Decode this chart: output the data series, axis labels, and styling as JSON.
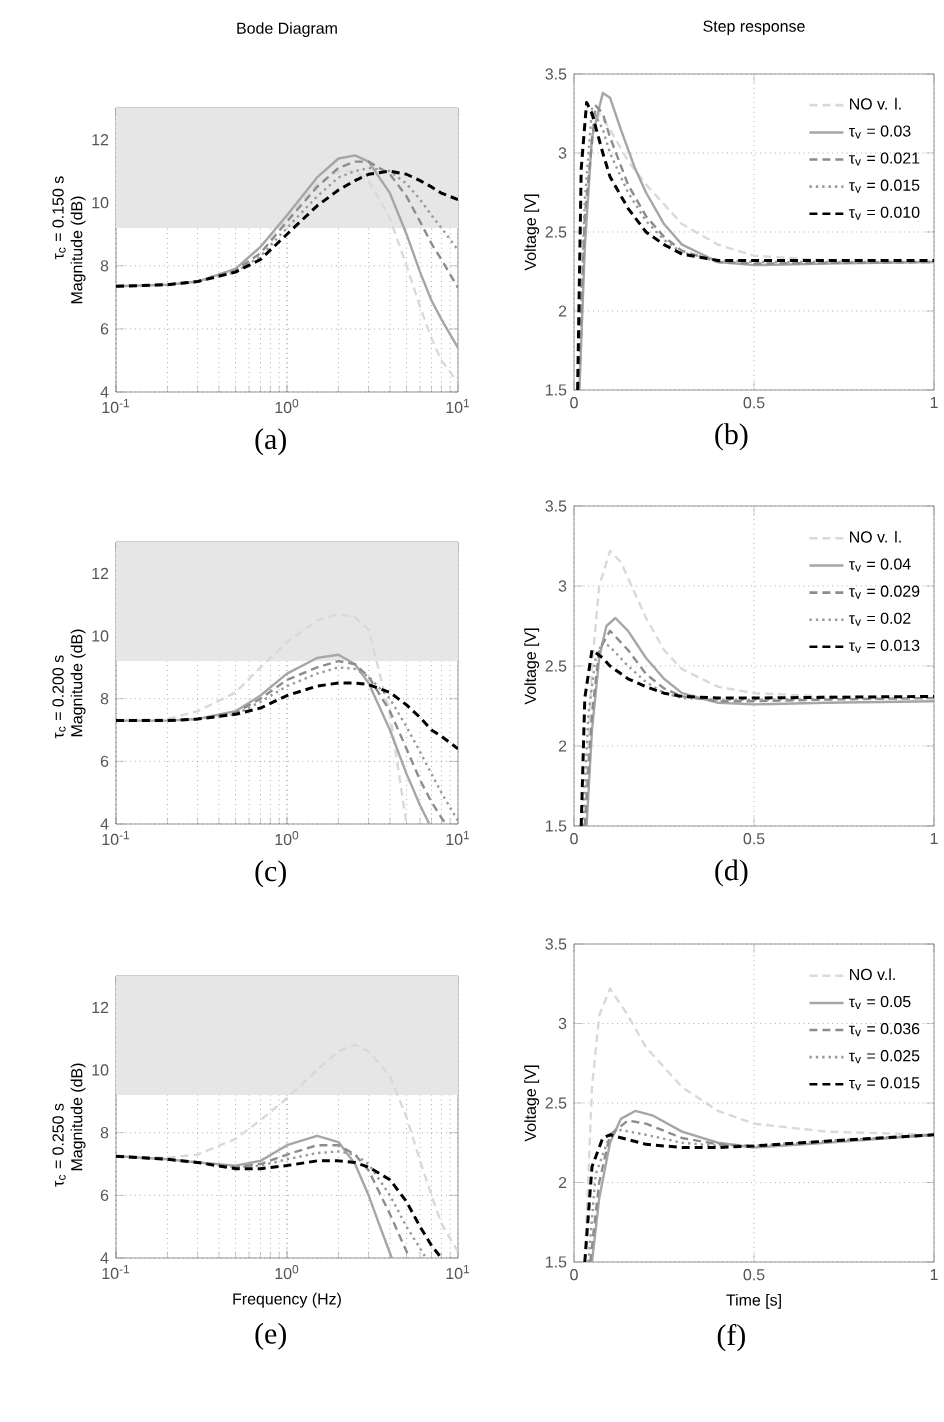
{
  "chart_data": [
    {
      "type": "line",
      "title": "Bode Diagram",
      "ylabel": "Magnitude (dB)",
      "annotations": [
        "τ$_{c}$ = 0.150 s",
        "(a)"
      ],
      "log": "x",
      "grid": true,
      "xlim": [
        0.1,
        10
      ],
      "ylim": [
        4,
        13
      ],
      "xticks": [
        {
          "value": 0.1,
          "label": "10$^{-1}$"
        },
        {
          "value": 1,
          "label": "10$^{0}$"
        },
        {
          "value": 10,
          "label": "10$^{1}$"
        }
      ],
      "yticks": [
        4,
        6,
        8,
        10,
        12
      ],
      "bands": [
        {
          "axis": "y",
          "from": 9.2,
          "to": 13,
          "color": "#e6e6e6"
        }
      ],
      "series": [
        {
          "color": "#d9d9d9",
          "line_style": "dashed",
          "x": [
            0.1,
            0.2,
            0.3,
            0.5,
            0.7,
            1,
            1.5,
            2,
            2.5,
            3,
            4,
            5,
            6,
            7,
            8,
            10
          ],
          "values": [
            7.35,
            7.4,
            7.5,
            7.9,
            8.6,
            9.5,
            10.6,
            11.0,
            11.0,
            10.7,
            9.5,
            8.0,
            6.7,
            5.7,
            5.0,
            4.3
          ]
        },
        {
          "color": "#a6a6a6",
          "line_style": "solid",
          "x": [
            0.1,
            0.2,
            0.3,
            0.5,
            0.7,
            1,
            1.5,
            2,
            2.5,
            3,
            4,
            5,
            6,
            7,
            8,
            10
          ],
          "values": [
            7.35,
            7.4,
            7.5,
            7.9,
            8.6,
            9.6,
            10.8,
            11.4,
            11.5,
            11.3,
            10.3,
            9.0,
            7.8,
            6.9,
            6.3,
            5.4
          ]
        },
        {
          "color": "#8c8c8c",
          "line_style": "dashed",
          "x": [
            0.1,
            0.2,
            0.3,
            0.5,
            0.7,
            1,
            1.5,
            2,
            2.5,
            3,
            4,
            5,
            6,
            7,
            8,
            10
          ],
          "values": [
            7.35,
            7.4,
            7.5,
            7.85,
            8.4,
            9.4,
            10.5,
            11.1,
            11.3,
            11.3,
            10.9,
            10.2,
            9.4,
            8.7,
            8.2,
            7.3
          ]
        },
        {
          "color": "#999999",
          "line_style": "dotted",
          "x": [
            0.1,
            0.2,
            0.3,
            0.5,
            0.7,
            1,
            1.5,
            2,
            2.5,
            3,
            4,
            5,
            6,
            7,
            8,
            10
          ],
          "values": [
            7.35,
            7.4,
            7.5,
            7.8,
            8.3,
            9.2,
            10.2,
            10.8,
            11.0,
            11.1,
            11.0,
            10.6,
            10.1,
            9.6,
            9.2,
            8.5
          ]
        },
        {
          "color": "#000000",
          "line_style": "dashed",
          "x": [
            0.1,
            0.2,
            0.3,
            0.5,
            0.7,
            1,
            1.5,
            2,
            2.5,
            3,
            4,
            5,
            6,
            7,
            8,
            10
          ],
          "values": [
            7.35,
            7.4,
            7.5,
            7.8,
            8.2,
            9.0,
            9.9,
            10.4,
            10.7,
            10.9,
            11.0,
            10.9,
            10.7,
            10.5,
            10.3,
            10.1
          ]
        }
      ]
    },
    {
      "type": "line",
      "title": "Step response",
      "ylabel": "Voltage [V]",
      "annotations": [
        "(b)"
      ],
      "grid": true,
      "legend": "right",
      "xlim": [
        0,
        1
      ],
      "ylim": [
        1.5,
        3.5
      ],
      "xticks": [
        0,
        0.5,
        1
      ],
      "yticks": [
        1.5,
        2,
        2.5,
        3,
        3.5
      ],
      "series": [
        {
          "name": "NO v. l.",
          "color": "#d9d9d9",
          "line_style": "dashed",
          "x": [
            0.015,
            0.03,
            0.05,
            0.07,
            0.1,
            0.15,
            0.2,
            0.3,
            0.4,
            0.5,
            0.7,
            1
          ],
          "values": [
            1.5,
            2.5,
            3.1,
            3.25,
            3.15,
            2.95,
            2.8,
            2.55,
            2.42,
            2.35,
            2.32,
            2.31
          ]
        },
        {
          "name": "τ$_{v}$ = 0.03",
          "color": "#a6a6a6",
          "line_style": "solid",
          "x": [
            0.015,
            0.03,
            0.05,
            0.08,
            0.1,
            0.13,
            0.17,
            0.2,
            0.25,
            0.3,
            0.4,
            0.5,
            0.7,
            1
          ],
          "values": [
            1.5,
            2.4,
            3.1,
            3.38,
            3.35,
            3.15,
            2.9,
            2.75,
            2.55,
            2.42,
            2.31,
            2.29,
            2.3,
            2.31
          ]
        },
        {
          "name": "τ$_{v}$ = 0.021",
          "color": "#8c8c8c",
          "line_style": "dashed",
          "x": [
            0.012,
            0.03,
            0.06,
            0.08,
            0.1,
            0.15,
            0.2,
            0.25,
            0.3,
            0.4,
            0.5,
            1
          ],
          "values": [
            1.5,
            2.6,
            3.3,
            3.25,
            3.1,
            2.8,
            2.6,
            2.47,
            2.38,
            2.31,
            2.3,
            2.31
          ]
        },
        {
          "name": "τ$_{v}$ = 0.015",
          "color": "#999999",
          "line_style": "dotted",
          "x": [
            0.012,
            0.03,
            0.05,
            0.08,
            0.1,
            0.15,
            0.2,
            0.25,
            0.3,
            0.4,
            0.5,
            1
          ],
          "values": [
            1.5,
            2.7,
            3.28,
            3.15,
            3.0,
            2.75,
            2.57,
            2.45,
            2.37,
            2.32,
            2.31,
            2.31
          ]
        },
        {
          "name": "τ$_{v}$ = 0.010",
          "color": "#000000",
          "line_style": "dashed",
          "x": [
            0.01,
            0.02,
            0.035,
            0.05,
            0.08,
            0.1,
            0.15,
            0.2,
            0.25,
            0.3,
            0.4,
            0.5,
            1
          ],
          "values": [
            1.5,
            2.9,
            3.32,
            3.25,
            3.0,
            2.85,
            2.65,
            2.5,
            2.42,
            2.36,
            2.32,
            2.32,
            2.32
          ]
        }
      ]
    },
    {
      "type": "line",
      "ylabel": "Magnitude (dB)",
      "annotations": [
        "τ$_{c}$ = 0.200 s",
        "(c)"
      ],
      "log": "x",
      "grid": true,
      "xlim": [
        0.1,
        10
      ],
      "ylim": [
        4,
        13
      ],
      "xticks": [
        {
          "value": 0.1,
          "label": "10$^{-1}$"
        },
        {
          "value": 1,
          "label": "10$^{0}$"
        },
        {
          "value": 10,
          "label": "10$^{1}$"
        }
      ],
      "yticks": [
        4,
        6,
        8,
        10,
        12
      ],
      "bands": [
        {
          "axis": "y",
          "from": 9.2,
          "to": 13,
          "color": "#e6e6e6"
        }
      ],
      "series": [
        {
          "color": "#d9d9d9",
          "line_style": "dashed",
          "x": [
            0.1,
            0.2,
            0.3,
            0.5,
            0.7,
            1,
            1.5,
            2,
            2.5,
            3,
            4,
            5
          ],
          "values": [
            7.3,
            7.35,
            7.6,
            8.2,
            9.0,
            9.8,
            10.5,
            10.7,
            10.6,
            10.2,
            7.5,
            4.0
          ]
        },
        {
          "color": "#a6a6a6",
          "line_style": "solid",
          "x": [
            0.1,
            0.2,
            0.3,
            0.5,
            0.7,
            1,
            1.5,
            2,
            2.5,
            3,
            4,
            5,
            6,
            6.8
          ],
          "values": [
            7.3,
            7.3,
            7.35,
            7.6,
            8.1,
            8.8,
            9.3,
            9.4,
            9.1,
            8.5,
            7.0,
            5.6,
            4.6,
            4.0
          ]
        },
        {
          "color": "#8c8c8c",
          "line_style": "dashed",
          "x": [
            0.1,
            0.2,
            0.3,
            0.5,
            0.7,
            1,
            1.5,
            2,
            2.5,
            3,
            4,
            5,
            6,
            7,
            8,
            8.5
          ],
          "values": [
            7.3,
            7.3,
            7.35,
            7.55,
            8.0,
            8.6,
            9.0,
            9.2,
            9.1,
            8.7,
            7.6,
            6.4,
            5.4,
            4.7,
            4.2,
            4.0
          ]
        },
        {
          "color": "#999999",
          "line_style": "dotted",
          "x": [
            0.1,
            0.2,
            0.3,
            0.5,
            0.7,
            1,
            1.5,
            2,
            2.5,
            3,
            4,
            5,
            6,
            7,
            8,
            10
          ],
          "values": [
            7.3,
            7.3,
            7.35,
            7.5,
            7.9,
            8.4,
            8.8,
            9.0,
            8.95,
            8.7,
            8.0,
            7.1,
            6.3,
            5.6,
            5.0,
            4.1
          ]
        },
        {
          "color": "#000000",
          "line_style": "dashed",
          "x": [
            0.1,
            0.2,
            0.3,
            0.5,
            0.7,
            1,
            1.5,
            2,
            2.5,
            3,
            4,
            5,
            6,
            7,
            8,
            10
          ],
          "values": [
            7.3,
            7.3,
            7.35,
            7.5,
            7.7,
            8.1,
            8.4,
            8.5,
            8.5,
            8.45,
            8.2,
            7.8,
            7.4,
            7.0,
            6.8,
            6.4
          ]
        }
      ]
    },
    {
      "type": "line",
      "ylabel": "Voltage [V]",
      "annotations": [
        "(d)"
      ],
      "grid": true,
      "legend": "right",
      "xlim": [
        0,
        1
      ],
      "ylim": [
        1.5,
        3.5
      ],
      "xticks": [
        0,
        0.5,
        1
      ],
      "yticks": [
        1.5,
        2,
        2.5,
        3,
        3.5
      ],
      "series": [
        {
          "name": "NO v. l.",
          "color": "#d9d9d9",
          "line_style": "dashed",
          "x": [
            0.03,
            0.05,
            0.07,
            0.1,
            0.13,
            0.17,
            0.2,
            0.25,
            0.3,
            0.4,
            0.5,
            0.7,
            1
          ],
          "values": [
            1.5,
            2.5,
            3.0,
            3.22,
            3.15,
            2.95,
            2.8,
            2.6,
            2.48,
            2.37,
            2.33,
            2.31,
            2.31
          ]
        },
        {
          "name": "τ$_{v}$ = 0.04",
          "color": "#a6a6a6",
          "line_style": "solid",
          "x": [
            0.035,
            0.05,
            0.07,
            0.09,
            0.115,
            0.15,
            0.2,
            0.25,
            0.3,
            0.4,
            0.5,
            0.7,
            1
          ],
          "values": [
            1.5,
            2.1,
            2.55,
            2.75,
            2.8,
            2.72,
            2.55,
            2.42,
            2.33,
            2.27,
            2.26,
            2.27,
            2.28
          ]
        },
        {
          "name": "τ$_{v}$ = 0.029",
          "color": "#8c8c8c",
          "line_style": "dashed",
          "x": [
            0.03,
            0.05,
            0.07,
            0.1,
            0.15,
            0.2,
            0.25,
            0.3,
            0.4,
            0.5,
            0.7,
            1
          ],
          "values": [
            1.5,
            2.2,
            2.6,
            2.72,
            2.6,
            2.45,
            2.36,
            2.31,
            2.28,
            2.28,
            2.29,
            2.3
          ]
        },
        {
          "name": "τ$_{v}$ = 0.02",
          "color": "#999999",
          "line_style": "dotted",
          "x": [
            0.025,
            0.04,
            0.06,
            0.08,
            0.1,
            0.15,
            0.2,
            0.25,
            0.3,
            0.4,
            0.5,
            1
          ],
          "values": [
            1.5,
            2.2,
            2.55,
            2.65,
            2.62,
            2.5,
            2.4,
            2.33,
            2.3,
            2.29,
            2.29,
            2.3
          ]
        },
        {
          "name": "τ$_{v}$ = 0.013",
          "color": "#000000",
          "line_style": "dashed",
          "x": [
            0.02,
            0.03,
            0.05,
            0.08,
            0.1,
            0.15,
            0.2,
            0.25,
            0.3,
            0.4,
            0.5,
            1
          ],
          "values": [
            1.5,
            2.3,
            2.6,
            2.55,
            2.5,
            2.42,
            2.37,
            2.33,
            2.31,
            2.3,
            2.3,
            2.31
          ]
        }
      ]
    },
    {
      "type": "line",
      "xlabel": "Frequency  (Hz)",
      "ylabel": "Magnitude (dB)",
      "annotations": [
        "τ$_{c}$ = 0.250 s",
        "(e)"
      ],
      "log": "x",
      "grid": true,
      "xlim": [
        0.1,
        10
      ],
      "ylim": [
        4,
        13
      ],
      "xticks": [
        {
          "value": 0.1,
          "label": "10$^{-1}$"
        },
        {
          "value": 1,
          "label": "10$^{0}$"
        },
        {
          "value": 10,
          "label": "10$^{1}$"
        }
      ],
      "yticks": [
        4,
        6,
        8,
        10,
        12
      ],
      "bands": [
        {
          "axis": "y",
          "from": 9.2,
          "to": 13,
          "color": "#e6e6e6"
        }
      ],
      "series": [
        {
          "color": "#d9d9d9",
          "line_style": "dashed",
          "x": [
            0.1,
            0.2,
            0.3,
            0.5,
            0.7,
            1,
            1.5,
            2,
            2.5,
            3,
            4,
            5,
            6,
            7,
            8,
            10
          ],
          "values": [
            7.25,
            7.2,
            7.3,
            7.8,
            8.4,
            9.1,
            10.0,
            10.6,
            10.8,
            10.6,
            9.8,
            8.5,
            7.1,
            6.0,
            5.1,
            4.2
          ]
        },
        {
          "color": "#a6a6a6",
          "line_style": "solid",
          "x": [
            0.1,
            0.2,
            0.3,
            0.5,
            0.7,
            1,
            1.5,
            2,
            2.5,
            3,
            3.5,
            4.1
          ],
          "values": [
            7.25,
            7.15,
            7.05,
            6.95,
            7.1,
            7.6,
            7.9,
            7.7,
            7.0,
            6.0,
            5.0,
            4.0
          ]
        },
        {
          "color": "#8c8c8c",
          "line_style": "dashed",
          "x": [
            0.1,
            0.2,
            0.3,
            0.5,
            0.7,
            1,
            1.5,
            2,
            2.5,
            3,
            4,
            5.2
          ],
          "values": [
            7.25,
            7.15,
            7.05,
            6.9,
            7.0,
            7.3,
            7.6,
            7.6,
            7.3,
            6.8,
            5.4,
            4.0
          ]
        },
        {
          "color": "#999999",
          "line_style": "dotted",
          "x": [
            0.1,
            0.2,
            0.3,
            0.5,
            0.7,
            1,
            1.5,
            2,
            2.5,
            3,
            4,
            5,
            6.5
          ],
          "values": [
            7.25,
            7.15,
            7.05,
            6.9,
            6.95,
            7.15,
            7.35,
            7.4,
            7.3,
            7.0,
            6.0,
            5.0,
            4.0
          ]
        },
        {
          "color": "#000000",
          "line_style": "dashed",
          "x": [
            0.1,
            0.2,
            0.3,
            0.5,
            0.7,
            1,
            1.5,
            2,
            2.5,
            3,
            4,
            5,
            6,
            7,
            8
          ],
          "values": [
            7.25,
            7.15,
            7.05,
            6.85,
            6.85,
            6.95,
            7.1,
            7.1,
            7.05,
            6.9,
            6.5,
            5.8,
            5.0,
            4.4,
            4.0
          ]
        }
      ]
    },
    {
      "type": "line",
      "xlabel": "Time [s]",
      "ylabel": "Voltage [V]",
      "annotations": [
        "(f)"
      ],
      "grid": true,
      "legend": "right",
      "xlim": [
        0,
        1
      ],
      "ylim": [
        1.5,
        3.5
      ],
      "xticks": [
        0,
        0.5,
        1
      ],
      "yticks": [
        1.5,
        2,
        2.5,
        3,
        3.5
      ],
      "series": [
        {
          "name": "NO v.l.",
          "color": "#d9d9d9",
          "line_style": "dashed",
          "x": [
            0.03,
            0.05,
            0.07,
            0.1,
            0.15,
            0.2,
            0.3,
            0.4,
            0.5,
            0.7,
            1
          ],
          "values": [
            1.5,
            2.6,
            3.05,
            3.22,
            3.05,
            2.85,
            2.6,
            2.45,
            2.37,
            2.32,
            2.3
          ]
        },
        {
          "name": "τ$_{v}$ = 0.05",
          "color": "#a6a6a6",
          "line_style": "solid",
          "x": [
            0.05,
            0.07,
            0.1,
            0.13,
            0.17,
            0.22,
            0.3,
            0.4,
            0.5,
            0.7,
            1
          ],
          "values": [
            1.5,
            1.9,
            2.25,
            2.4,
            2.45,
            2.42,
            2.32,
            2.25,
            2.22,
            2.25,
            2.3
          ]
        },
        {
          "name": "τ$_{v}$ = 0.036",
          "color": "#8c8c8c",
          "line_style": "dashed",
          "x": [
            0.045,
            0.07,
            0.1,
            0.15,
            0.2,
            0.3,
            0.4,
            0.5,
            0.7,
            1
          ],
          "values": [
            1.5,
            2.0,
            2.3,
            2.39,
            2.37,
            2.28,
            2.24,
            2.23,
            2.26,
            2.3
          ]
        },
        {
          "name": "τ$_{v}$ = 0.025",
          "color": "#999999",
          "line_style": "dotted",
          "x": [
            0.04,
            0.06,
            0.1,
            0.13,
            0.2,
            0.3,
            0.4,
            0.5,
            0.7,
            1
          ],
          "values": [
            1.5,
            2.05,
            2.3,
            2.33,
            2.3,
            2.25,
            2.23,
            2.23,
            2.26,
            2.3
          ]
        },
        {
          "name": "τ$_{v}$ = 0.015",
          "color": "#000000",
          "line_style": "dashed",
          "x": [
            0.03,
            0.05,
            0.08,
            0.1,
            0.15,
            0.2,
            0.3,
            0.4,
            0.5,
            0.7,
            1
          ],
          "values": [
            1.5,
            2.1,
            2.28,
            2.3,
            2.27,
            2.24,
            2.22,
            2.22,
            2.23,
            2.26,
            2.3
          ]
        }
      ]
    }
  ]
}
